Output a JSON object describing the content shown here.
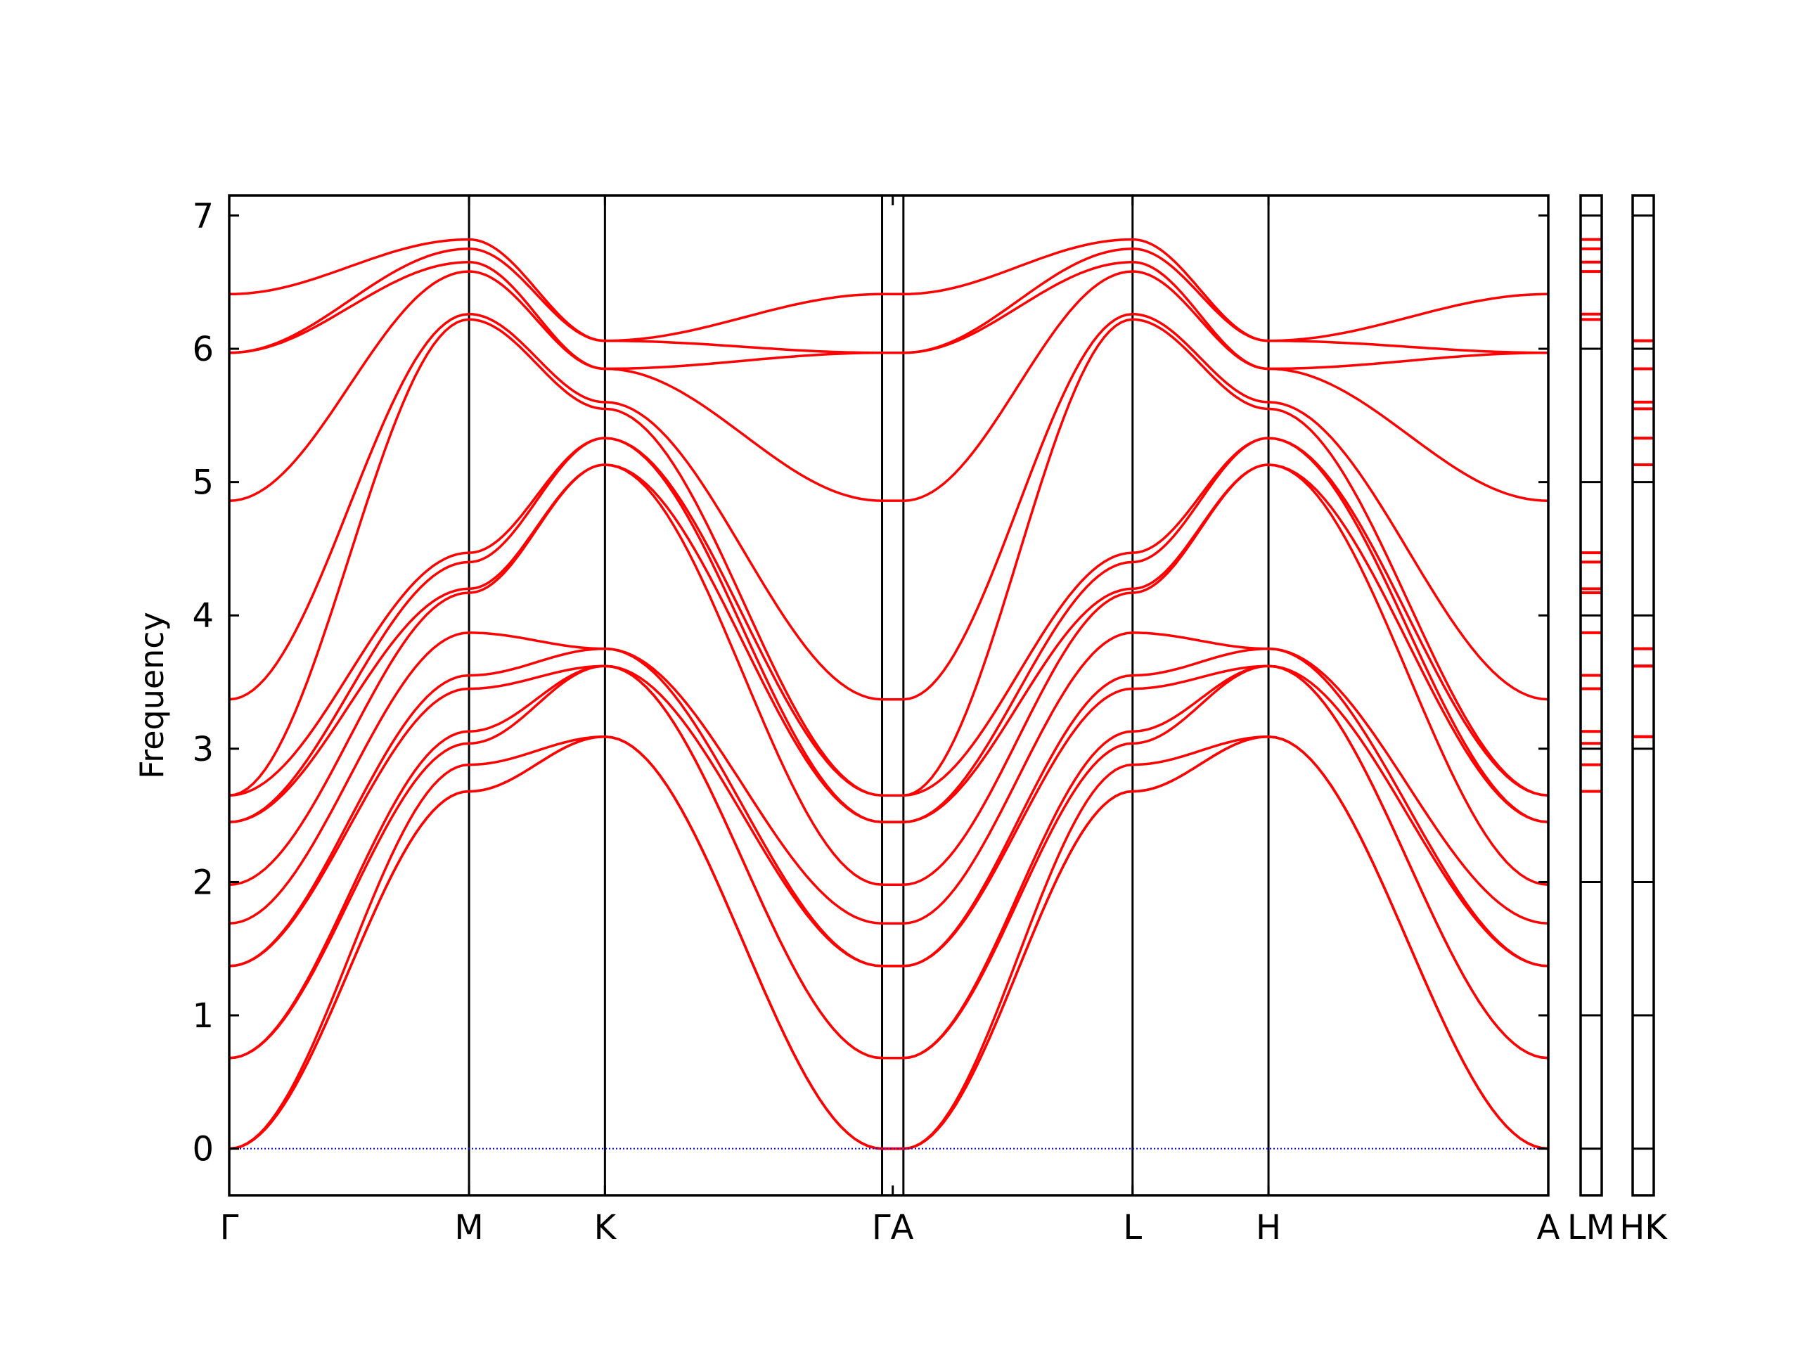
{
  "chart_data": {
    "type": "line",
    "ylabel": "Frequency",
    "ylim": [
      -0.35,
      7.15
    ],
    "yticks": [
      0,
      1,
      2,
      3,
      4,
      5,
      6,
      7
    ],
    "band_color": "#ff0000",
    "zero_line_color": "#0000ff",
    "grid": false,
    "main_panel": {
      "x_range": [
        0,
        9.9
      ],
      "xticks": [
        {
          "label": "Γ",
          "x": 0
        },
        {
          "label": "M",
          "x": 1.8
        },
        {
          "label": "K",
          "x": 2.82
        },
        {
          "label": "ΓA",
          "x": 4.98
        },
        {
          "label": "L",
          "x": 6.78
        },
        {
          "label": "H",
          "x": 7.8
        },
        {
          "label": "A",
          "x": 9.9
        }
      ],
      "high_symmetry_vlines": [
        1.8,
        2.82,
        4.9,
        5.06,
        6.78,
        7.8
      ],
      "segments": [
        {
          "from": "Γ",
          "to": "M",
          "x_start": 0,
          "x_end": 1.8,
          "bands": [
            [
              0,
              2.68
            ],
            [
              0,
              2.68
            ],
            [
              0,
              2.88
            ],
            [
              0.68,
              3.04
            ],
            [
              0.68,
              3.13
            ],
            [
              1.37,
              3.45
            ],
            [
              1.37,
              3.55
            ],
            [
              1.69,
              3.87
            ],
            [
              1.98,
              4.17
            ],
            [
              2.45,
              4.2
            ],
            [
              2.45,
              4.4
            ],
            [
              2.65,
              4.47
            ],
            [
              2.65,
              6.22
            ],
            [
              3.37,
              6.26
            ],
            [
              4.86,
              6.58
            ],
            [
              5.97,
              6.65
            ],
            [
              5.97,
              6.75
            ],
            [
              6.41,
              6.82
            ]
          ]
        },
        {
          "from": "M",
          "to": "K",
          "x_start": 1.8,
          "x_end": 2.82,
          "bands": [
            [
              2.68,
              3.09
            ],
            [
              2.68,
              3.09
            ],
            [
              2.88,
              3.09
            ],
            [
              3.04,
              3.62
            ],
            [
              3.13,
              3.62
            ],
            [
              3.45,
              3.62
            ],
            [
              3.55,
              3.75
            ],
            [
              3.87,
              3.75
            ],
            [
              4.17,
              5.13
            ],
            [
              4.2,
              5.13
            ],
            [
              4.4,
              5.33
            ],
            [
              4.47,
              5.33
            ],
            [
              6.22,
              5.55
            ],
            [
              6.26,
              5.6
            ],
            [
              6.58,
              5.85
            ],
            [
              6.65,
              5.85
            ],
            [
              6.75,
              6.06
            ],
            [
              6.82,
              6.06
            ]
          ]
        },
        {
          "from": "K",
          "to": "Γ",
          "x_start": 2.82,
          "x_end": 4.9,
          "bands": [
            [
              3.09,
              0
            ],
            [
              3.09,
              0
            ],
            [
              3.09,
              0
            ],
            [
              3.62,
              0.68
            ],
            [
              3.62,
              0.68
            ],
            [
              3.62,
              1.37
            ],
            [
              3.75,
              1.37
            ],
            [
              3.75,
              1.69
            ],
            [
              5.13,
              1.98
            ],
            [
              5.13,
              2.45
            ],
            [
              5.33,
              2.45
            ],
            [
              5.33,
              2.65
            ],
            [
              5.55,
              2.65
            ],
            [
              5.6,
              3.37
            ],
            [
              5.85,
              4.86
            ],
            [
              5.85,
              5.97
            ],
            [
              6.06,
              5.97
            ],
            [
              6.06,
              6.41
            ]
          ]
        },
        {
          "from": "A",
          "to": "L",
          "x_start": 5.06,
          "x_end": 6.78,
          "bands": [
            [
              0,
              2.68
            ],
            [
              0,
              2.68
            ],
            [
              0,
              2.88
            ],
            [
              0.68,
              3.04
            ],
            [
              0.68,
              3.13
            ],
            [
              1.37,
              3.45
            ],
            [
              1.37,
              3.55
            ],
            [
              1.69,
              3.87
            ],
            [
              1.98,
              4.17
            ],
            [
              2.45,
              4.2
            ],
            [
              2.45,
              4.4
            ],
            [
              2.65,
              4.47
            ],
            [
              2.65,
              6.22
            ],
            [
              3.37,
              6.26
            ],
            [
              4.86,
              6.58
            ],
            [
              5.97,
              6.65
            ],
            [
              5.97,
              6.75
            ],
            [
              6.41,
              6.82
            ]
          ]
        },
        {
          "from": "L",
          "to": "H",
          "x_start": 6.78,
          "x_end": 7.8,
          "bands": [
            [
              2.68,
              3.09
            ],
            [
              2.68,
              3.09
            ],
            [
              2.88,
              3.09
            ],
            [
              3.04,
              3.62
            ],
            [
              3.13,
              3.62
            ],
            [
              3.45,
              3.62
            ],
            [
              3.55,
              3.75
            ],
            [
              3.87,
              3.75
            ],
            [
              4.17,
              5.13
            ],
            [
              4.2,
              5.13
            ],
            [
              4.4,
              5.33
            ],
            [
              4.47,
              5.33
            ],
            [
              6.22,
              5.55
            ],
            [
              6.26,
              5.6
            ],
            [
              6.58,
              5.85
            ],
            [
              6.65,
              5.85
            ],
            [
              6.75,
              6.06
            ],
            [
              6.82,
              6.06
            ]
          ]
        },
        {
          "from": "H",
          "to": "A",
          "x_start": 7.8,
          "x_end": 9.9,
          "bands": [
            [
              3.09,
              0
            ],
            [
              3.09,
              0
            ],
            [
              3.09,
              0
            ],
            [
              3.62,
              0.68
            ],
            [
              3.62,
              0.68
            ],
            [
              3.62,
              1.37
            ],
            [
              3.75,
              1.37
            ],
            [
              3.75,
              1.69
            ],
            [
              5.13,
              1.98
            ],
            [
              5.13,
              2.45
            ],
            [
              5.33,
              2.45
            ],
            [
              5.33,
              2.65
            ],
            [
              5.55,
              2.65
            ],
            [
              5.6,
              3.37
            ],
            [
              5.85,
              4.86
            ],
            [
              5.85,
              5.97
            ],
            [
              6.06,
              5.97
            ],
            [
              6.06,
              6.41
            ]
          ]
        }
      ]
    },
    "side_panels": [
      {
        "label": "LM",
        "levels": [
          2.68,
          2.68,
          2.88,
          3.04,
          3.13,
          3.45,
          3.55,
          3.87,
          4.17,
          4.2,
          4.4,
          4.47,
          6.22,
          6.26,
          6.58,
          6.65,
          6.75,
          6.82
        ]
      },
      {
        "label": "HK",
        "levels": [
          3.09,
          3.09,
          3.09,
          3.62,
          3.62,
          3.62,
          3.75,
          3.75,
          5.13,
          5.13,
          5.33,
          5.33,
          5.55,
          5.6,
          5.85,
          5.85,
          6.06,
          6.06
        ]
      }
    ]
  }
}
